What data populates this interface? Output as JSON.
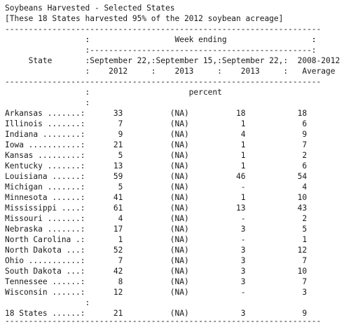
{
  "report": {
    "title": "Soybeans Harvested - Selected States",
    "subtitle": "[These 18 States harvested 95% of the 2012 soybean acreage]",
    "lines": [
      "-------------------------------------------------------------------",
      "                 :                                               :",
      "                 :                  Week ending                  :",
      "                 :-----------------------------------------------:",
      "     State       :September 22,:September 15,:September 22,:  2008-2012",
      "                 :    2012     :    2013     :    2013     :   Average",
      "-------------------------------------------------------------------",
      "                 :                     percent",
      "                 :",
      "Arkansas .......:      33          (NA)          18           18",
      "Illinois .......:       7          (NA)           1            6",
      "Indiana ........:       9          (NA)           4            9",
      "Iowa ...........:      21          (NA)           1            7",
      "Kansas .........:       5          (NA)           1            2",
      "Kentucky .......:      13          (NA)           1            6",
      "Louisiana ......:      59          (NA)          46           54",
      "Michigan .......:       5          (NA)           -            4",
      "Minnesota ......:      41          (NA)           1           10",
      "Mississippi ....:      61          (NA)          13           43",
      "Missouri .......:       4          (NA)           -            2",
      "Nebraska .......:      17          (NA)           3            5",
      "North Carolina .:       1          (NA)           -            1",
      "North Dakota ...:      52          (NA)           3           12",
      "Ohio ...........:       7          (NA)           3            7",
      "South Dakota ...:      42          (NA)           3           10",
      "Tennessee ......:       8          (NA)           3            7",
      "Wisconsin ......:      12          (NA)           -            3",
      "                 :",
      "18 States ......:      21          (NA)           3            9",
      "-------------------------------------------------------------------"
    ]
  }
}
